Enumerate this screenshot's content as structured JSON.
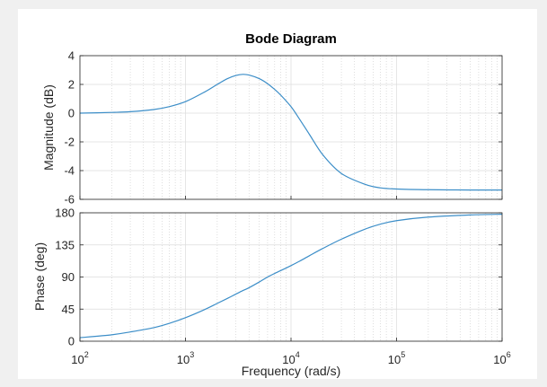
{
  "chart_data": {
    "type": "line",
    "title": "Bode Diagram",
    "xlabel": "Frequency  (rad/s)",
    "x_scale": "log",
    "xlim": [
      100,
      1000000
    ],
    "x_ticks": [
      {
        "value": 100,
        "base": "10",
        "exp": "2"
      },
      {
        "value": 1000,
        "base": "10",
        "exp": "3"
      },
      {
        "value": 10000,
        "base": "10",
        "exp": "4"
      },
      {
        "value": 100000,
        "base": "10",
        "exp": "5"
      },
      {
        "value": 1000000,
        "base": "10",
        "exp": "6"
      }
    ],
    "grid": true,
    "line_color": "#3c8ec8",
    "x": [
      100,
      200,
      300,
      500,
      700,
      1000,
      1500,
      2000,
      2500,
      3000,
      3500,
      4000,
      5000,
      6000,
      7000,
      8000,
      10000,
      12000,
      15000,
      20000,
      30000,
      50000,
      70000,
      100000,
      200000,
      500000,
      1000000
    ],
    "panels": [
      {
        "ylabel": "Magnitude (dB)",
        "ylim": [
          -6,
          4
        ],
        "yticks": [
          -6,
          -4,
          -2,
          0,
          2,
          4
        ],
        "values": [
          0.0,
          0.05,
          0.1,
          0.25,
          0.45,
          0.8,
          1.45,
          2.0,
          2.4,
          2.62,
          2.7,
          2.65,
          2.4,
          2.05,
          1.65,
          1.25,
          0.45,
          -0.4,
          -1.5,
          -2.9,
          -4.2,
          -4.95,
          -5.2,
          -5.28,
          -5.33,
          -5.35,
          -5.35
        ]
      },
      {
        "ylabel": "Phase (deg)",
        "ylim": [
          0,
          180
        ],
        "yticks": [
          0,
          45,
          90,
          135,
          180
        ],
        "values": [
          5,
          9,
          13,
          19,
          25,
          33,
          44,
          53,
          60,
          66,
          71,
          75,
          83,
          90,
          95,
          99,
          106,
          112,
          120,
          130,
          143,
          157,
          164,
          169,
          174,
          177,
          178
        ]
      }
    ]
  }
}
